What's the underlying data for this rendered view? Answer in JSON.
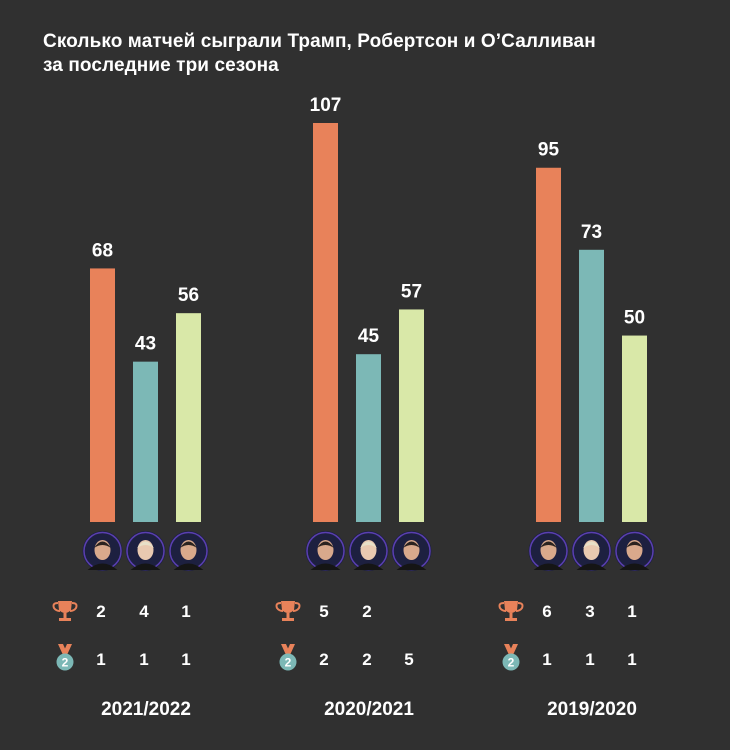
{
  "title": {
    "line1": "Сколько матчей сыграли Трамп, Робертсон и О’Салливан",
    "line2": "за последние три сезона"
  },
  "colors": {
    "background": "#303030",
    "trump": "#e8825a",
    "robertson": "#7cb8b6",
    "osullivan": "#d9e8a8",
    "trophy": "#e8825a",
    "medal_ribbon": "#e8825a",
    "medal": "#7cb8b6"
  },
  "icons": {
    "trophy": "trophy-icon",
    "runner_up": "runner-up-medal-icon",
    "runner_up_digit": "2",
    "players": [
      "trump-avatar",
      "robertson-avatar",
      "osullivan-avatar"
    ]
  },
  "chart_data": {
    "type": "bar",
    "title": "Сколько матчей сыграли Трамп, Робертсон и О’Салливан за последние три сезона",
    "categories": [
      "2021/2022",
      "2020/2021",
      "2019/2020"
    ],
    "series": [
      {
        "values": [
          68,
          107,
          95
        ]
      },
      {
        "values": [
          43,
          45,
          73
        ]
      },
      {
        "values": [
          56,
          57,
          50
        ]
      }
    ],
    "ylim": [
      0,
      107
    ],
    "grid": false,
    "titles_won": [
      [
        "2",
        "4",
        "1"
      ],
      [
        "5",
        "2",
        ""
      ],
      [
        "6",
        "3",
        "1"
      ]
    ],
    "finals_lost": [
      [
        "1",
        "1",
        "1"
      ],
      [
        "2",
        "2",
        "5"
      ],
      [
        "1",
        "1",
        "1"
      ]
    ]
  }
}
